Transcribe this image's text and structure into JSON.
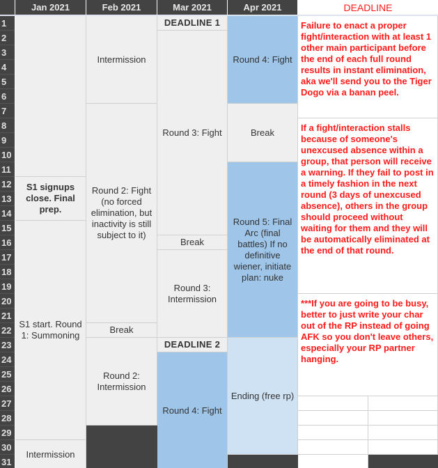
{
  "headers": [
    "Jan 2021",
    "Feb 2021",
    "Mar 2021",
    "Apr 2021",
    "DEADLINE"
  ],
  "row_numbers": [
    "1",
    "2",
    "3",
    "4",
    "5",
    "6",
    "7",
    "8",
    "9",
    "10",
    "11",
    "12",
    "13",
    "14",
    "15",
    "16",
    "17",
    "18",
    "19",
    "20",
    "21",
    "22",
    "23",
    "24",
    "25",
    "26",
    "27",
    "28",
    "29",
    "30",
    "31"
  ],
  "colors": {
    "header": "#434343",
    "cell": "#efefef",
    "fight": "#9fc5e8",
    "ending": "#cfe2f3",
    "deadline_text": "#ff1a1a"
  },
  "columns": {
    "jan": [
      {
        "text": "",
        "from": 1,
        "to": 11,
        "style": "grey"
      },
      {
        "text": "S1 signups close. Final prep.",
        "from": 12,
        "to": 14,
        "style": "grey bold"
      },
      {
        "text": "S1 start. Round 1: Summoning",
        "from": 15,
        "to": 29,
        "style": "grey"
      },
      {
        "text": "Intermission",
        "from": 30,
        "to": 31,
        "style": "grey"
      }
    ],
    "feb": [
      {
        "text": "Intermission",
        "from": 1,
        "to": 6,
        "style": "grey"
      },
      {
        "text": "Round 2: Fight (no forced elimination, but inactivity is still subject to it)",
        "from": 7,
        "to": 21,
        "style": "grey"
      },
      {
        "text": "Break",
        "from": 22,
        "to": 22,
        "style": "grey"
      },
      {
        "text": "Round 2: Intermission",
        "from": 23,
        "to": 28,
        "style": "grey"
      },
      {
        "text": "",
        "from": 29,
        "to": 31,
        "style": "dark"
      }
    ],
    "mar": [
      {
        "text": "DEADLINE 1",
        "from": 1,
        "to": 1,
        "style": "grey dl"
      },
      {
        "text": "Round 3: Fight",
        "from": 2,
        "to": 15,
        "style": "grey"
      },
      {
        "text": "Break",
        "from": 16,
        "to": 16,
        "style": "grey"
      },
      {
        "text": "Round 3: Intermission",
        "from": 17,
        "to": 22,
        "style": "grey"
      },
      {
        "text": "DEADLINE 2",
        "from": 23,
        "to": 23,
        "style": "grey dl"
      },
      {
        "text": "Round 4: Fight",
        "from": 24,
        "to": 31,
        "style": "blue"
      }
    ],
    "apr": [
      {
        "text": "Round 4: Fight",
        "from": 1,
        "to": 6,
        "style": "blue"
      },
      {
        "text": "Break",
        "from": 7,
        "to": 10,
        "style": "grey"
      },
      {
        "text": "Round 5: Final Arc (final battles) If no definitive wiener, initiate plan: nuke",
        "from": 11,
        "to": 22,
        "style": "blue"
      },
      {
        "text": "Ending (free rp)",
        "from": 23,
        "to": 30,
        "style": "lblue"
      },
      {
        "text": "",
        "from": 31,
        "to": 31,
        "style": "dark"
      }
    ],
    "deadline_notes": [
      {
        "text": "Failure to enact a proper fight/interaction with at least 1 other main participant before the end of each full round results in instant elimination, aka we'll send you to the Tiger Dogo via a banan peel.",
        "from": 1,
        "to": 7
      },
      {
        "text": "If a fight/interaction stalls because of someone's unexcused absence within a group, that person will receive a warning. If they fail to post in a timely fashion in the next round (3 days of unexcused absence), others in the group should proceed without waiting for them and they will be automatically eliminated at the end of that round.",
        "from": 8,
        "to": 19
      },
      {
        "text": "***If you are going to be busy, better to just write your char out of the RP instead of going AFK so you don't leave others, especially your RP partner hanging.",
        "from": 20,
        "to": 26
      }
    ]
  }
}
